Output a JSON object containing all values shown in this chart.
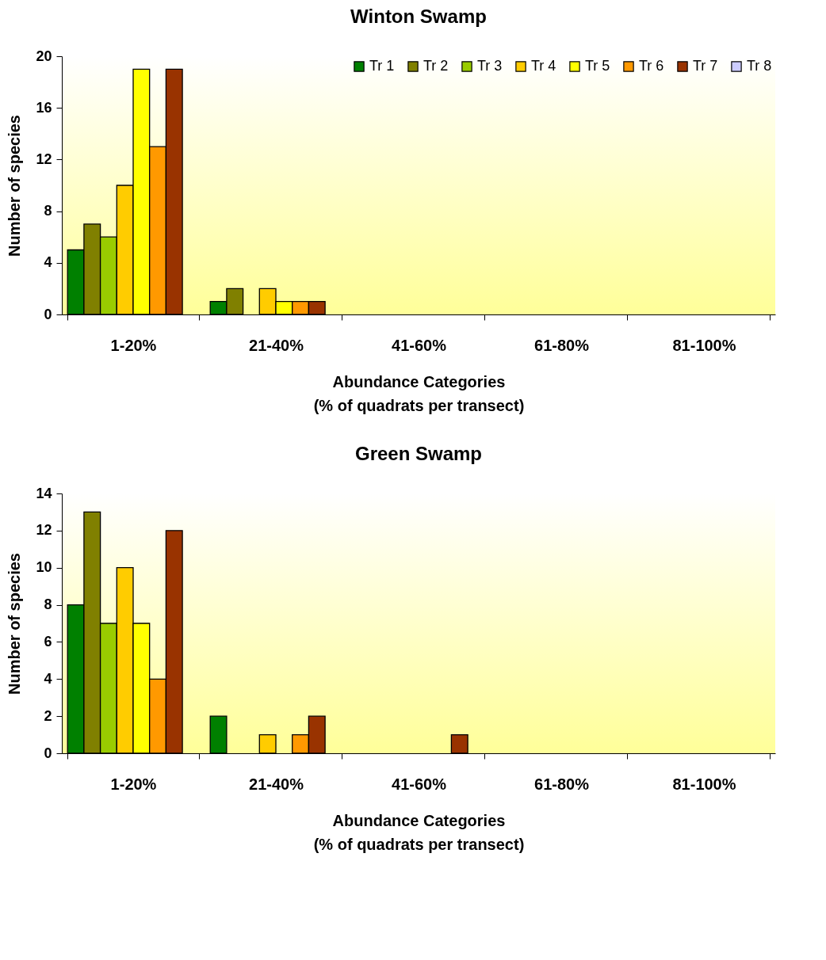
{
  "chart_data": [
    {
      "type": "bar",
      "title": "Winton Swamp",
      "xlabel": "Abundance Categories\n(% of quadrats per transect)",
      "ylabel": "Number of species",
      "categories": [
        "1-20%",
        "21-40%",
        "41-60%",
        "61-80%",
        "81-100%"
      ],
      "ylim": [
        0,
        20
      ],
      "yticks": [
        0,
        4,
        8,
        12,
        16,
        20
      ],
      "grid": false,
      "legend": "top right",
      "series": [
        {
          "name": "Tr 1",
          "color": "#008000",
          "values": [
            5,
            1,
            null,
            null,
            null
          ]
        },
        {
          "name": "Tr 2",
          "color": "#808000",
          "values": [
            7,
            2,
            null,
            null,
            null
          ]
        },
        {
          "name": "Tr 3",
          "color": "#99cc00",
          "values": [
            6,
            null,
            null,
            null,
            null
          ]
        },
        {
          "name": "Tr 4",
          "color": "#ffcc00",
          "values": [
            10,
            2,
            null,
            null,
            null
          ]
        },
        {
          "name": "Tr 5",
          "color": "#ffff00",
          "values": [
            19,
            1,
            null,
            null,
            null
          ]
        },
        {
          "name": "Tr 6",
          "color": "#ff9900",
          "values": [
            13,
            1,
            null,
            null,
            null
          ]
        },
        {
          "name": "Tr 7",
          "color": "#993300",
          "values": [
            19,
            1,
            null,
            null,
            null
          ]
        },
        {
          "name": "Tr 8",
          "color": "#ccccff",
          "values": [
            null,
            null,
            null,
            null,
            null
          ]
        }
      ]
    },
    {
      "type": "bar",
      "title": "Green Swamp",
      "xlabel": "Abundance Categories\n(% of quadrats per transect)",
      "ylabel": "Number of species",
      "categories": [
        "1-20%",
        "21-40%",
        "41-60%",
        "61-80%",
        "81-100%"
      ],
      "ylim": [
        0,
        14
      ],
      "yticks": [
        0,
        2,
        4,
        6,
        8,
        10,
        12,
        14
      ],
      "grid": false,
      "legend": "top right",
      "series": [
        {
          "name": "Tr 1",
          "color": "#008000",
          "values": [
            8,
            2,
            null,
            null,
            null
          ]
        },
        {
          "name": "Tr 2",
          "color": "#808000",
          "values": [
            13,
            null,
            null,
            null,
            null
          ]
        },
        {
          "name": "Tr 3",
          "color": "#99cc00",
          "values": [
            7,
            null,
            null,
            null,
            null
          ]
        },
        {
          "name": "Tr 4",
          "color": "#ffcc00",
          "values": [
            10,
            1,
            null,
            null,
            null
          ]
        },
        {
          "name": "Tr 5",
          "color": "#ffff00",
          "values": [
            7,
            null,
            null,
            null,
            null
          ]
        },
        {
          "name": "Tr 6",
          "color": "#ff9900",
          "values": [
            4,
            1,
            null,
            null,
            null
          ]
        },
        {
          "name": "Tr 7",
          "color": "#993300",
          "values": [
            12,
            2,
            1,
            null,
            null
          ]
        }
      ]
    }
  ]
}
